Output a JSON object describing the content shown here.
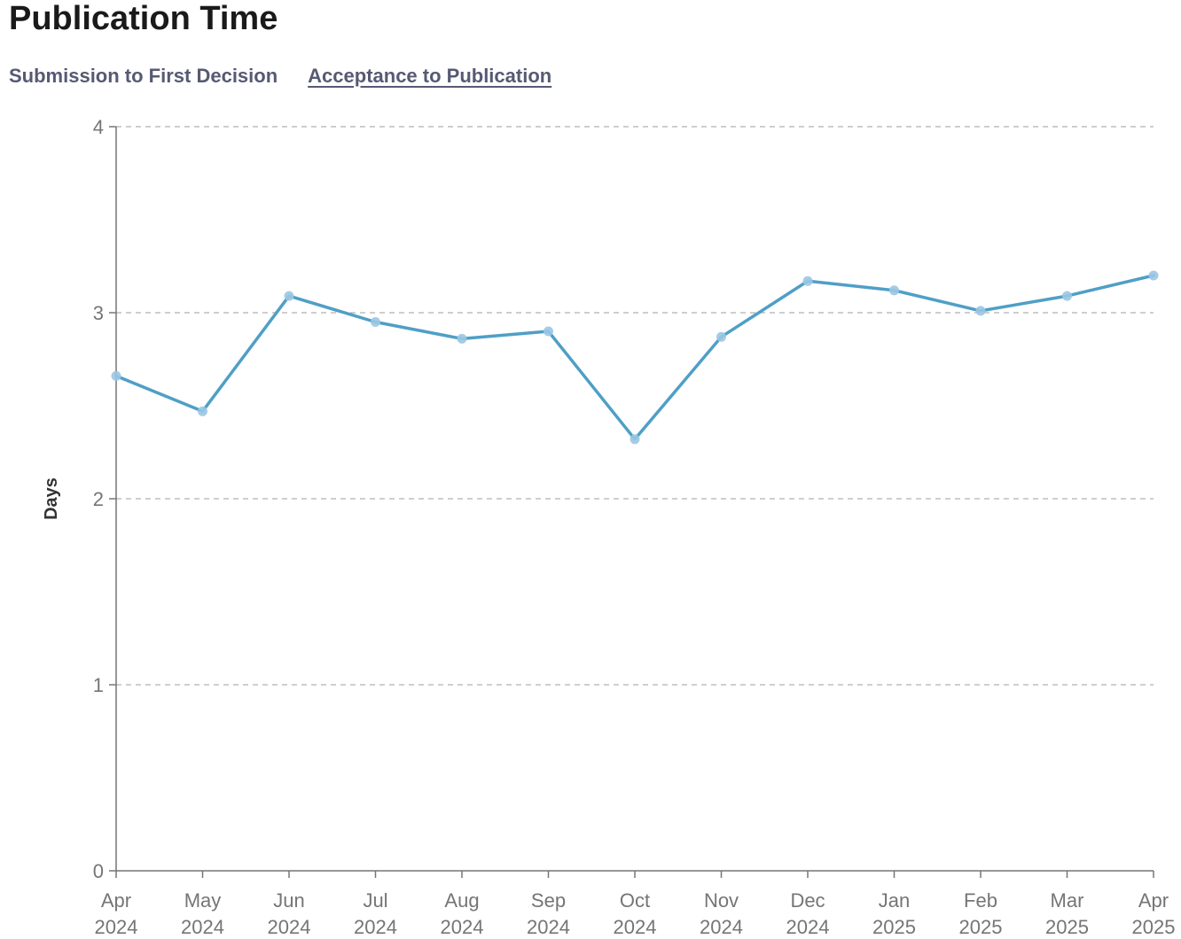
{
  "header": {
    "title": "Publication Time"
  },
  "tabs": [
    {
      "label": "Submission to First Decision",
      "active": false
    },
    {
      "label": "Acceptance to Publication",
      "active": true
    }
  ],
  "colors": {
    "line": "#4f9fc6",
    "point": "#9ac6e3",
    "grid": "#bdbdbd",
    "axis": "#757575"
  },
  "chart_data": {
    "type": "line",
    "title": "",
    "xlabel": "",
    "ylabel": "Days",
    "ylim": [
      0,
      4
    ],
    "yticks": [
      0,
      1,
      2,
      3,
      4
    ],
    "grid": true,
    "categories": [
      [
        "Apr",
        "2024"
      ],
      [
        "May",
        "2024"
      ],
      [
        "Jun",
        "2024"
      ],
      [
        "Jul",
        "2024"
      ],
      [
        "Aug",
        "2024"
      ],
      [
        "Sep",
        "2024"
      ],
      [
        "Oct",
        "2024"
      ],
      [
        "Nov",
        "2024"
      ],
      [
        "Dec",
        "2024"
      ],
      [
        "Jan",
        "2025"
      ],
      [
        "Feb",
        "2025"
      ],
      [
        "Mar",
        "2025"
      ],
      [
        "Apr",
        "2025"
      ]
    ],
    "series": [
      {
        "values": [
          2.66,
          2.47,
          3.09,
          2.95,
          2.86,
          2.9,
          2.32,
          2.87,
          3.17,
          3.12,
          3.01,
          3.09,
          3.2
        ]
      }
    ]
  }
}
